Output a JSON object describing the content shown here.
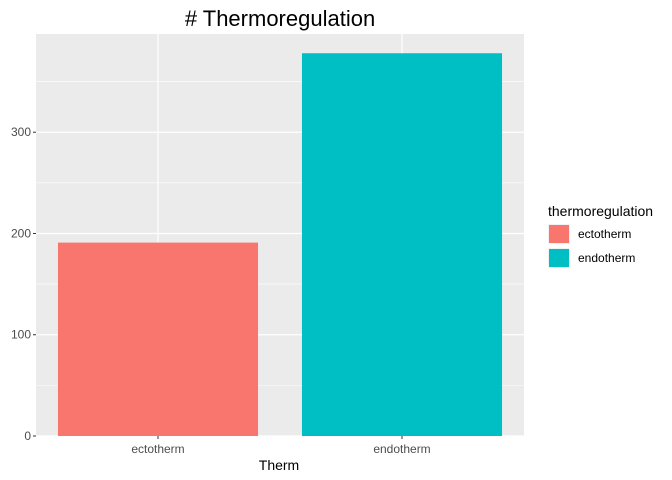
{
  "chart_data": {
    "type": "bar",
    "title": "# Thermoregulation",
    "xlabel": "Therm",
    "ylabel": "",
    "categories": [
      "ectotherm",
      "endotherm"
    ],
    "values": [
      191,
      378
    ],
    "colors": [
      "#F8766D",
      "#00BFC4"
    ],
    "ylim": [
      0,
      397
    ],
    "yticks": [
      0,
      100,
      200,
      300
    ],
    "grid": true,
    "panel_background": "#EBEBEB",
    "legend": {
      "title": "thermoregulation",
      "position": "right",
      "entries": [
        "ectotherm",
        "endotherm"
      ]
    }
  }
}
